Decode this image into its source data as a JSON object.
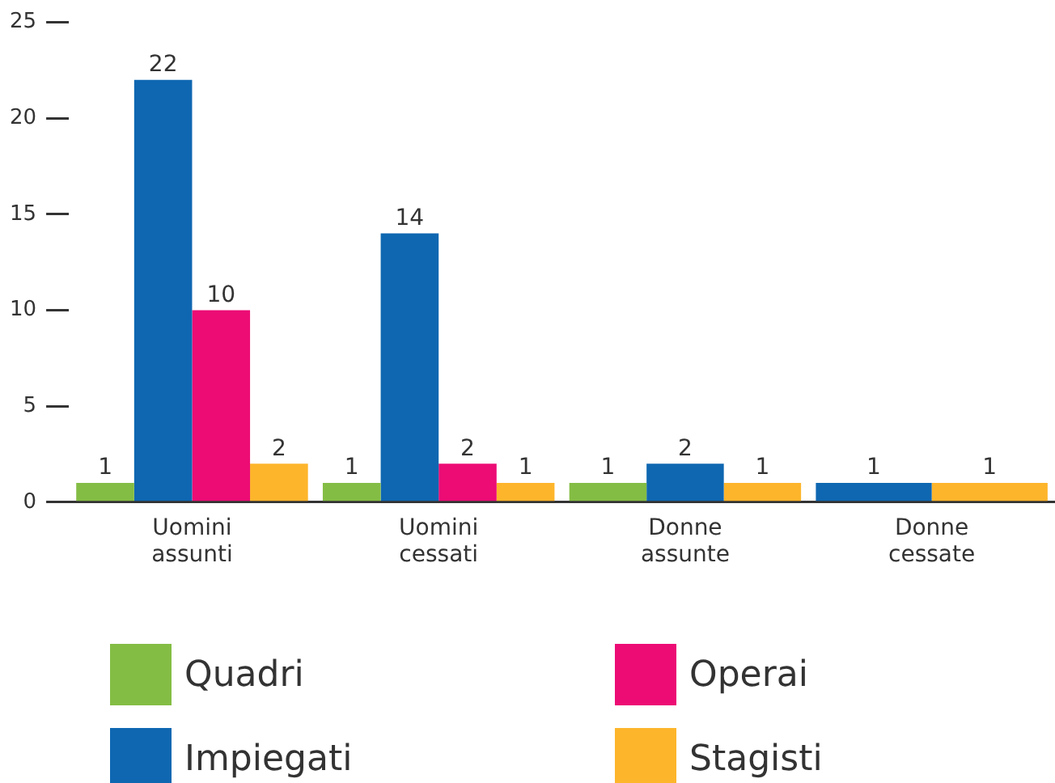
{
  "chart_data": {
    "type": "bar",
    "categories": [
      "Uomini assunti",
      "Uomini cessati",
      "Donne assunte",
      "Donne cessate"
    ],
    "series": [
      {
        "name": "Quadri",
        "color": "#84bd44",
        "values": [
          1,
          1,
          1,
          null
        ]
      },
      {
        "name": "Impiegati",
        "color": "#0f67b1",
        "values": [
          22,
          14,
          2,
          1
        ]
      },
      {
        "name": "Operai",
        "color": "#ec0c74",
        "values": [
          10,
          2,
          null,
          null
        ]
      },
      {
        "name": "Stagisti",
        "color": "#fdb52b",
        "values": [
          2,
          1,
          1,
          1
        ]
      }
    ],
    "ylim": [
      0,
      25
    ],
    "yticks": [
      0,
      5,
      10,
      15,
      20,
      25
    ],
    "grid": false,
    "legend": "bottom",
    "data_labels": true
  }
}
